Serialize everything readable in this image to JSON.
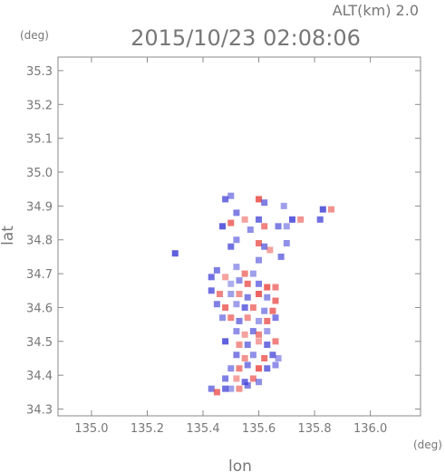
{
  "header": {
    "alt_label": "ALT(km)",
    "alt_value": "2.0",
    "datetime": "2015/10/23 02:08:06"
  },
  "chart_data": {
    "type": "scatter",
    "xlabel": "lon",
    "ylabel": "lat",
    "x_unit": "(deg)",
    "y_unit": "(deg)",
    "xlim": [
      134.88,
      136.18
    ],
    "ylim": [
      34.28,
      35.34
    ],
    "x_ticks": [
      "135.0",
      "135.2",
      "135.4",
      "135.6",
      "135.8",
      "136.0"
    ],
    "y_ticks": [
      "34.3",
      "34.4",
      "34.5",
      "34.6",
      "34.7",
      "34.8",
      "34.9",
      "35.0",
      "35.1",
      "35.2",
      "35.3"
    ],
    "grid": false,
    "colors": {
      "positive": "#e8413c",
      "negative": "#3b3bd6",
      "axis": "#8a8a8a"
    },
    "points": [
      {
        "x": 135.48,
        "y": 34.92,
        "v": -0.6
      },
      {
        "x": 135.5,
        "y": 34.93,
        "v": -0.4
      },
      {
        "x": 135.6,
        "y": 34.92,
        "v": 0.7
      },
      {
        "x": 135.62,
        "y": 34.91,
        "v": -0.5
      },
      {
        "x": 135.69,
        "y": 34.9,
        "v": -0.3
      },
      {
        "x": 135.83,
        "y": 34.89,
        "v": -0.7
      },
      {
        "x": 135.86,
        "y": 34.89,
        "v": 0.4
      },
      {
        "x": 135.82,
        "y": 34.86,
        "v": -0.6
      },
      {
        "x": 135.52,
        "y": 34.88,
        "v": -0.5
      },
      {
        "x": 135.5,
        "y": 34.85,
        "v": 0.6
      },
      {
        "x": 135.47,
        "y": 34.84,
        "v": -0.7
      },
      {
        "x": 135.55,
        "y": 34.86,
        "v": 0.3
      },
      {
        "x": 135.57,
        "y": 34.83,
        "v": -0.4
      },
      {
        "x": 135.6,
        "y": 34.86,
        "v": -0.6
      },
      {
        "x": 135.62,
        "y": 34.84,
        "v": 0.5
      },
      {
        "x": 135.67,
        "y": 34.84,
        "v": -0.5
      },
      {
        "x": 135.7,
        "y": 34.84,
        "v": -0.3
      },
      {
        "x": 135.72,
        "y": 34.86,
        "v": -0.7
      },
      {
        "x": 135.75,
        "y": 34.86,
        "v": 0.4
      },
      {
        "x": 135.52,
        "y": 34.8,
        "v": -0.4
      },
      {
        "x": 135.5,
        "y": 34.78,
        "v": -0.6
      },
      {
        "x": 135.6,
        "y": 34.79,
        "v": 0.6
      },
      {
        "x": 135.62,
        "y": 34.78,
        "v": -0.5
      },
      {
        "x": 135.64,
        "y": 34.77,
        "v": 0.3
      },
      {
        "x": 135.7,
        "y": 34.79,
        "v": -0.4
      },
      {
        "x": 135.68,
        "y": 34.75,
        "v": -0.5
      },
      {
        "x": 135.3,
        "y": 34.76,
        "v": -0.7
      },
      {
        "x": 135.6,
        "y": 34.74,
        "v": -0.4
      },
      {
        "x": 135.45,
        "y": 34.71,
        "v": -0.5
      },
      {
        "x": 135.52,
        "y": 34.72,
        "v": -0.3
      },
      {
        "x": 135.55,
        "y": 34.7,
        "v": 0.5
      },
      {
        "x": 135.58,
        "y": 34.7,
        "v": -0.3
      },
      {
        "x": 135.43,
        "y": 34.69,
        "v": -0.6
      },
      {
        "x": 135.48,
        "y": 34.69,
        "v": 0.3
      },
      {
        "x": 135.5,
        "y": 34.67,
        "v": -0.2
      },
      {
        "x": 135.53,
        "y": 34.68,
        "v": -0.4
      },
      {
        "x": 135.56,
        "y": 34.67,
        "v": 0.6
      },
      {
        "x": 135.6,
        "y": 34.67,
        "v": -0.5
      },
      {
        "x": 135.63,
        "y": 34.66,
        "v": 0.7
      },
      {
        "x": 135.66,
        "y": 34.66,
        "v": 0.5
      },
      {
        "x": 135.43,
        "y": 34.65,
        "v": -0.6
      },
      {
        "x": 135.46,
        "y": 34.64,
        "v": 0.5
      },
      {
        "x": 135.5,
        "y": 34.64,
        "v": -0.3
      },
      {
        "x": 135.53,
        "y": 34.64,
        "v": 0.4
      },
      {
        "x": 135.56,
        "y": 34.63,
        "v": -0.5
      },
      {
        "x": 135.6,
        "y": 34.64,
        "v": 0.7
      },
      {
        "x": 135.63,
        "y": 34.63,
        "v": -0.4
      },
      {
        "x": 135.66,
        "y": 34.62,
        "v": 0.6
      },
      {
        "x": 135.45,
        "y": 34.61,
        "v": -0.5
      },
      {
        "x": 135.48,
        "y": 34.6,
        "v": 0.6
      },
      {
        "x": 135.52,
        "y": 34.61,
        "v": -0.3
      },
      {
        "x": 135.55,
        "y": 34.6,
        "v": -0.6
      },
      {
        "x": 135.58,
        "y": 34.6,
        "v": 0.5
      },
      {
        "x": 135.62,
        "y": 34.59,
        "v": -0.4
      },
      {
        "x": 135.65,
        "y": 34.59,
        "v": 0.6
      },
      {
        "x": 135.47,
        "y": 34.57,
        "v": -0.4
      },
      {
        "x": 135.5,
        "y": 34.57,
        "v": 0.5
      },
      {
        "x": 135.53,
        "y": 34.56,
        "v": -0.5
      },
      {
        "x": 135.56,
        "y": 34.57,
        "v": 0.4
      },
      {
        "x": 135.6,
        "y": 34.56,
        "v": -0.3
      },
      {
        "x": 135.63,
        "y": 34.56,
        "v": 0.6
      },
      {
        "x": 135.66,
        "y": 34.57,
        "v": -0.5
      },
      {
        "x": 135.52,
        "y": 34.53,
        "v": -0.4
      },
      {
        "x": 135.55,
        "y": 34.52,
        "v": 0.3
      },
      {
        "x": 135.58,
        "y": 34.53,
        "v": -0.5
      },
      {
        "x": 135.6,
        "y": 34.52,
        "v": 0.5
      },
      {
        "x": 135.63,
        "y": 34.53,
        "v": -0.3
      },
      {
        "x": 135.48,
        "y": 34.5,
        "v": -0.7
      },
      {
        "x": 135.53,
        "y": 34.49,
        "v": 0.4
      },
      {
        "x": 135.56,
        "y": 34.49,
        "v": -0.5
      },
      {
        "x": 135.6,
        "y": 34.5,
        "v": 0.3
      },
      {
        "x": 135.63,
        "y": 34.49,
        "v": -0.6
      },
      {
        "x": 135.66,
        "y": 34.5,
        "v": 0.5
      },
      {
        "x": 135.52,
        "y": 34.46,
        "v": -0.5
      },
      {
        "x": 135.55,
        "y": 34.45,
        "v": 0.4
      },
      {
        "x": 135.58,
        "y": 34.46,
        "v": -0.4
      },
      {
        "x": 135.62,
        "y": 34.45,
        "v": 0.6
      },
      {
        "x": 135.65,
        "y": 34.46,
        "v": -0.6
      },
      {
        "x": 135.67,
        "y": 34.45,
        "v": -0.3
      },
      {
        "x": 135.5,
        "y": 34.42,
        "v": -0.4
      },
      {
        "x": 135.53,
        "y": 34.42,
        "v": 0.5
      },
      {
        "x": 135.56,
        "y": 34.43,
        "v": -0.5
      },
      {
        "x": 135.6,
        "y": 34.42,
        "v": 0.7
      },
      {
        "x": 135.63,
        "y": 34.42,
        "v": -0.6
      },
      {
        "x": 135.66,
        "y": 34.43,
        "v": -0.4
      },
      {
        "x": 135.48,
        "y": 34.39,
        "v": -0.5
      },
      {
        "x": 135.52,
        "y": 34.39,
        "v": 0.3
      },
      {
        "x": 135.55,
        "y": 34.38,
        "v": -0.6
      },
      {
        "x": 135.58,
        "y": 34.39,
        "v": 0.5
      },
      {
        "x": 135.6,
        "y": 34.38,
        "v": -0.4
      },
      {
        "x": 135.43,
        "y": 34.36,
        "v": -0.5
      },
      {
        "x": 135.45,
        "y": 34.35,
        "v": 0.6
      },
      {
        "x": 135.48,
        "y": 34.36,
        "v": -0.6
      },
      {
        "x": 135.5,
        "y": 34.36,
        "v": -0.3
      },
      {
        "x": 135.53,
        "y": 34.36,
        "v": 0.4
      },
      {
        "x": 135.56,
        "y": 34.37,
        "v": -0.5
      }
    ]
  }
}
